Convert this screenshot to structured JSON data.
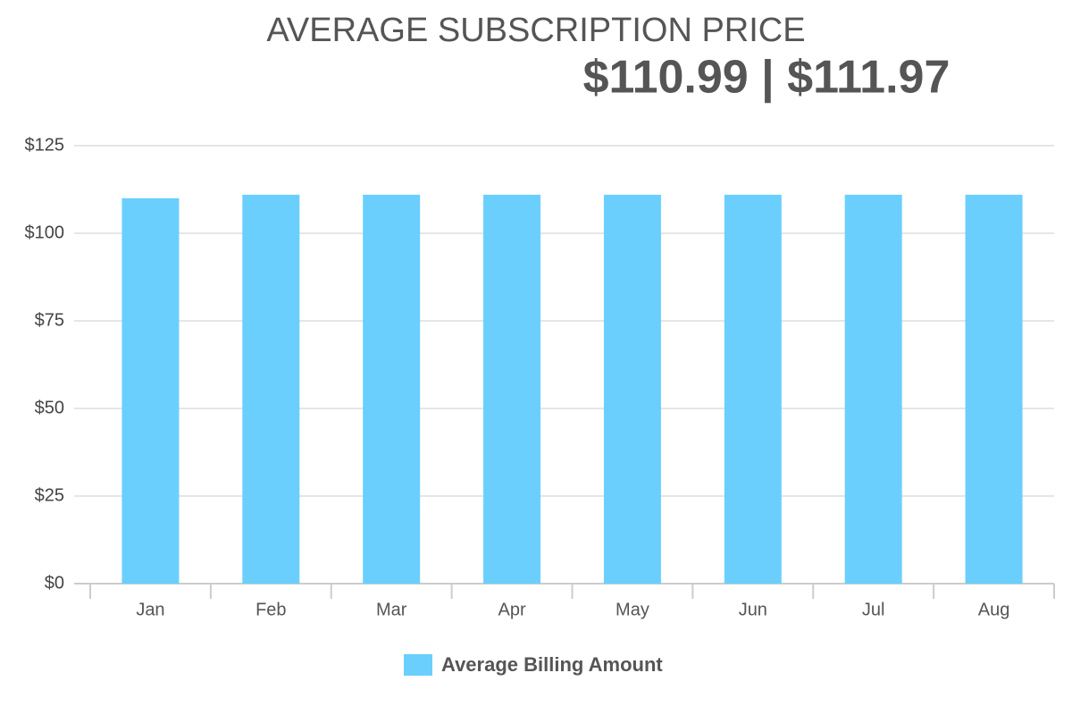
{
  "chart_data": {
    "type": "bar",
    "title": "AVERAGE SUBSCRIPTION PRICE",
    "subtitle": "$110.99 | $111.97",
    "categories": [
      "Jan",
      "Feb",
      "Mar",
      "Apr",
      "May",
      "Jun",
      "Jul",
      "Aug"
    ],
    "series": [
      {
        "name": "Average Billing Amount",
        "color": "#6acffd",
        "values": [
          110,
          111,
          111,
          111,
          111,
          111,
          111,
          111
        ]
      }
    ],
    "ylim": [
      0,
      125
    ],
    "yticks": [
      {
        "value": 0,
        "label": "$0"
      },
      {
        "value": 25,
        "label": "$25"
      },
      {
        "value": 50,
        "label": "$50"
      },
      {
        "value": 75,
        "label": "$75"
      },
      {
        "value": 100,
        "label": "$100"
      },
      {
        "value": 125,
        "label": "$125"
      }
    ],
    "grid": true,
    "legend": "bottom"
  }
}
